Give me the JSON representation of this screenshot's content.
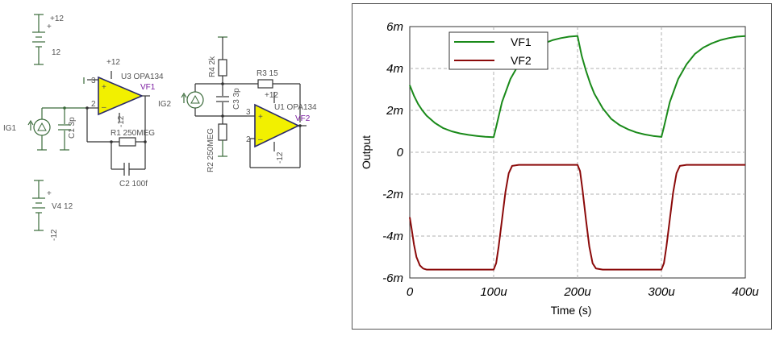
{
  "schematic": {
    "labels": {
      "bat_top_plus": "+12",
      "bat_top_value": "12",
      "ig1": "IG1",
      "c1": "C1 3p",
      "u3_supply": "+12",
      "u3_name": "U3 OPA134",
      "u3_pin3": "3",
      "u3_pin2": "2",
      "u3_neg": "-12",
      "vf1": "VF1",
      "ig2": "IG2",
      "r1": "R1 250MEG",
      "c2": "C2 100f",
      "v4": "V4 12",
      "v4_neg": "-12",
      "r4": "R4 2k",
      "r3": "R3 15",
      "c3": "C3 3p",
      "u1_supply": "+12",
      "u1_name": "U1 OPA134",
      "u1_pin3": "3",
      "u1_pin2": "2",
      "u1_neg": "-12",
      "vf2": "VF2",
      "r2": "R2 250MEG"
    }
  },
  "colors": {
    "vf1": "#1a8a1a",
    "vf2": "#8b0a0a",
    "opamp": "#f2f000",
    "grid": "#b0b0b0"
  },
  "chart_data": {
    "type": "line",
    "xlabel": "Time (s)",
    "ylabel": "Output",
    "xlim": [
      0,
      400
    ],
    "ylim": [
      -6,
      6
    ],
    "x_ticks": [
      "0",
      "100u",
      "200u",
      "300u",
      "400u"
    ],
    "y_ticks": [
      "6m",
      "4m",
      "2m",
      "0",
      "-2m",
      "-4m",
      "-6m"
    ],
    "grid": true,
    "legend_position": "top-left",
    "series": [
      {
        "name": "VF1",
        "x": [
          0,
          5,
          10,
          15,
          20,
          30,
          40,
          50,
          60,
          70,
          80,
          90,
          99,
          100,
          103,
          110,
          120,
          130,
          140,
          150,
          160,
          170,
          180,
          190,
          199,
          200,
          205,
          210,
          215,
          220,
          230,
          240,
          250,
          260,
          270,
          280,
          290,
          299,
          300,
          303,
          310,
          320,
          330,
          340,
          350,
          360,
          370,
          380,
          390,
          400
        ],
        "y": [
          3.2,
          2.7,
          2.3,
          2.0,
          1.75,
          1.4,
          1.15,
          1.0,
          0.9,
          0.83,
          0.78,
          0.74,
          0.72,
          0.72,
          1.2,
          2.4,
          3.5,
          4.2,
          4.7,
          5.0,
          5.2,
          5.35,
          5.45,
          5.52,
          5.55,
          5.55,
          4.6,
          3.9,
          3.3,
          2.8,
          2.1,
          1.6,
          1.3,
          1.1,
          0.95,
          0.85,
          0.78,
          0.74,
          0.73,
          1.2,
          2.4,
          3.5,
          4.2,
          4.7,
          5.0,
          5.2,
          5.35,
          5.45,
          5.52,
          5.55
        ]
      },
      {
        "name": "VF2",
        "x": [
          0,
          2,
          5,
          8,
          12,
          16,
          20,
          30,
          60,
          99,
          100,
          103,
          106,
          110,
          114,
          118,
          122,
          130,
          160,
          199,
          200,
          203,
          206,
          210,
          214,
          218,
          222,
          230,
          260,
          299,
          300,
          303,
          306,
          310,
          314,
          318,
          322,
          330,
          360,
          400
        ],
        "y": [
          -3.1,
          -3.6,
          -4.4,
          -5.0,
          -5.4,
          -5.55,
          -5.6,
          -5.6,
          -5.6,
          -5.6,
          -5.6,
          -5.3,
          -4.5,
          -3.2,
          -1.9,
          -1.0,
          -0.65,
          -0.6,
          -0.6,
          -0.6,
          -0.6,
          -0.9,
          -1.8,
          -3.2,
          -4.5,
          -5.3,
          -5.55,
          -5.6,
          -5.6,
          -5.6,
          -5.6,
          -5.3,
          -4.5,
          -3.2,
          -1.9,
          -1.0,
          -0.65,
          -0.6,
          -0.6,
          -0.6
        ]
      }
    ]
  }
}
